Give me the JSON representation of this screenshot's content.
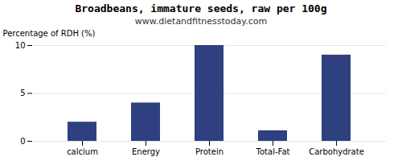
{
  "chart_data": {
    "type": "bar",
    "title": "Broadbeans, immature seeds, raw per 100g",
    "subtitle": "www.dietandfitnesstoday.com",
    "categories": [
      "calcium",
      "Energy",
      "Protein",
      "Total-Fat",
      "Carbohydrate"
    ],
    "values": [
      2.0,
      4.0,
      10.0,
      1.1,
      9.0
    ],
    "color": "#2e4080",
    "ylabel": "Percentage of RDH (%)",
    "ylim": [
      0,
      10
    ],
    "yticks": [
      0,
      5,
      10
    ],
    "grid": true
  }
}
